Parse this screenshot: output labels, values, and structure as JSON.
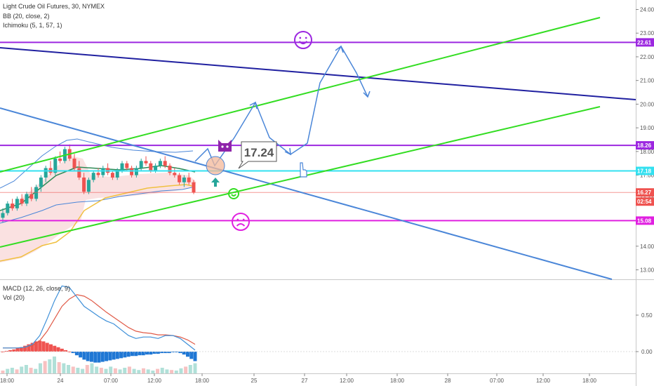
{
  "header": {
    "title": "Light Crude Oil Futures, 30, NYMEX",
    "indicators": [
      "BB (20, close, 2)",
      "Ichimoku (5, 1, 57, 1)"
    ]
  },
  "sub_panel": {
    "title": "MACD (12, 26, close, 9)",
    "vol": "Vol (20)",
    "ticks": [
      "0.50",
      "0.00"
    ]
  },
  "callout": "17.24",
  "colors": {
    "up": "#26a69a",
    "down": "#ef5350",
    "channel": "#33dd22",
    "purple": "#9c27e0",
    "navy": "#2020a0",
    "trend": "#4a86d8",
    "cyan": "#33e0f0",
    "magenta": "#e020e0",
    "price": "#ef5350"
  },
  "chart_data": {
    "type": "line",
    "x_ticks": [
      "18:00",
      "24",
      "07:00",
      "12:00",
      "18:00",
      "25",
      "27",
      "12:00",
      "18:00",
      "28",
      "07:00",
      "12:00",
      "18:00"
    ],
    "y_ticks": [
      "24.00",
      "23.00",
      "22.00",
      "21.00",
      "20.00",
      "19.00",
      "18.00",
      "17.00",
      "16.00",
      "15.00",
      "14.00",
      "13.00"
    ],
    "ylim": [
      12.6,
      24.4
    ],
    "horizontal_levels": [
      {
        "value": 22.61,
        "label": "22.61",
        "color": "#9c27e0"
      },
      {
        "value": 18.26,
        "label": "18.26",
        "color": "#9c27e0"
      },
      {
        "value": 17.18,
        "label": "17.18",
        "color": "#33e0f0"
      },
      {
        "value": 16.27,
        "label": "16.27",
        "color": "#ef5350"
      },
      {
        "value": 15.08,
        "label": "15.08",
        "color": "#e020e0"
      }
    ],
    "countdown": "02:54",
    "candles": [
      [
        15.2,
        15.6,
        15.0,
        15.4
      ],
      [
        15.4,
        15.9,
        15.3,
        15.8
      ],
      [
        15.8,
        16.0,
        15.5,
        15.6
      ],
      [
        15.6,
        16.1,
        15.5,
        16.0
      ],
      [
        16.0,
        16.2,
        15.7,
        15.8
      ],
      [
        15.8,
        16.3,
        15.7,
        16.2
      ],
      [
        16.2,
        16.5,
        15.9,
        16.0
      ],
      [
        16.0,
        16.6,
        15.9,
        16.5
      ],
      [
        16.5,
        17.0,
        16.3,
        16.9
      ],
      [
        16.9,
        17.4,
        16.7,
        17.3
      ],
      [
        17.3,
        17.6,
        17.0,
        17.1
      ],
      [
        17.1,
        17.8,
        17.0,
        17.7
      ],
      [
        17.7,
        18.0,
        17.5,
        17.6
      ],
      [
        17.6,
        18.2,
        17.5,
        18.1
      ],
      [
        18.1,
        18.3,
        17.6,
        17.7
      ],
      [
        17.7,
        17.9,
        17.2,
        17.3
      ],
      [
        17.3,
        17.6,
        16.8,
        16.9
      ],
      [
        16.9,
        17.1,
        16.2,
        16.3
      ],
      [
        16.3,
        16.9,
        16.2,
        16.8
      ],
      [
        16.8,
        17.2,
        16.7,
        17.1
      ],
      [
        17.1,
        17.3,
        16.9,
        17.0
      ],
      [
        17.0,
        17.4,
        16.9,
        17.3
      ],
      [
        17.3,
        17.5,
        17.0,
        17.1
      ],
      [
        17.1,
        17.2,
        16.8,
        16.9
      ],
      [
        16.9,
        17.3,
        16.8,
        17.2
      ],
      [
        17.2,
        17.6,
        17.1,
        17.5
      ],
      [
        17.5,
        17.6,
        17.2,
        17.3
      ],
      [
        17.3,
        17.4,
        16.9,
        17.0
      ],
      [
        17.0,
        17.4,
        16.9,
        17.3
      ],
      [
        17.3,
        17.7,
        17.2,
        17.6
      ],
      [
        17.6,
        17.8,
        17.4,
        17.5
      ],
      [
        17.5,
        17.6,
        17.1,
        17.2
      ],
      [
        17.2,
        17.5,
        17.1,
        17.4
      ],
      [
        17.4,
        17.7,
        17.3,
        17.6
      ],
      [
        17.6,
        17.8,
        17.3,
        17.4
      ],
      [
        17.4,
        17.5,
        17.0,
        17.1
      ],
      [
        17.1,
        17.3,
        16.9,
        17.0
      ],
      [
        17.0,
        17.1,
        16.6,
        16.7
      ],
      [
        16.7,
        17.0,
        16.5,
        16.9
      ],
      [
        16.9,
        17.1,
        16.6,
        16.7
      ],
      [
        16.7,
        16.8,
        16.2,
        16.27
      ]
    ],
    "macd_line": [
      0.05,
      0.05,
      0.05,
      0.06,
      0.1,
      0.22,
      0.45,
      0.7,
      0.9,
      0.88,
      0.75,
      0.62,
      0.55,
      0.48,
      0.42,
      0.38,
      0.3,
      0.22,
      0.18,
      0.2,
      0.2,
      0.18,
      0.22,
      0.22,
      0.18,
      0.1,
      0.02
    ],
    "signal_line": [
      0.05,
      0.05,
      0.05,
      0.06,
      0.08,
      0.15,
      0.28,
      0.45,
      0.62,
      0.72,
      0.78,
      0.76,
      0.7,
      0.62,
      0.54,
      0.47,
      0.4,
      0.33,
      0.28,
      0.26,
      0.25,
      0.23,
      0.23,
      0.22,
      0.2,
      0.16,
      0.1
    ],
    "histogram": [
      0.0,
      0.01,
      0.02,
      0.03,
      0.05,
      0.06,
      0.08,
      0.1,
      0.12,
      0.14,
      0.15,
      0.14,
      0.12,
      0.1,
      0.08,
      0.06,
      0.04,
      0.02,
      0.0,
      -0.02,
      -0.05,
      -0.08,
      -0.11,
      -0.13,
      -0.14,
      -0.15,
      -0.15,
      -0.14,
      -0.13,
      -0.12,
      -0.11,
      -0.1,
      -0.09,
      -0.08,
      -0.07,
      -0.06,
      -0.06,
      -0.05,
      -0.05,
      -0.04,
      -0.04,
      -0.03,
      -0.03,
      -0.02,
      -0.02,
      -0.02,
      -0.01,
      -0.01,
      -0.02,
      -0.04,
      -0.07,
      -0.1,
      -0.13
    ],
    "volume": [
      0.05,
      0.08,
      0.1,
      0.07,
      0.12,
      0.15,
      0.1,
      0.08,
      0.18,
      0.22,
      0.25,
      0.3,
      0.2,
      0.18,
      0.15,
      0.12,
      0.1,
      0.08,
      0.15,
      0.18,
      0.12,
      0.1,
      0.08,
      0.12,
      0.09,
      0.07,
      0.1,
      0.12,
      0.08,
      0.06,
      0.09,
      0.07,
      0.05,
      0.08,
      0.1,
      0.07,
      0.06,
      0.05,
      0.09,
      0.12,
      0.15,
      0.18
    ]
  }
}
